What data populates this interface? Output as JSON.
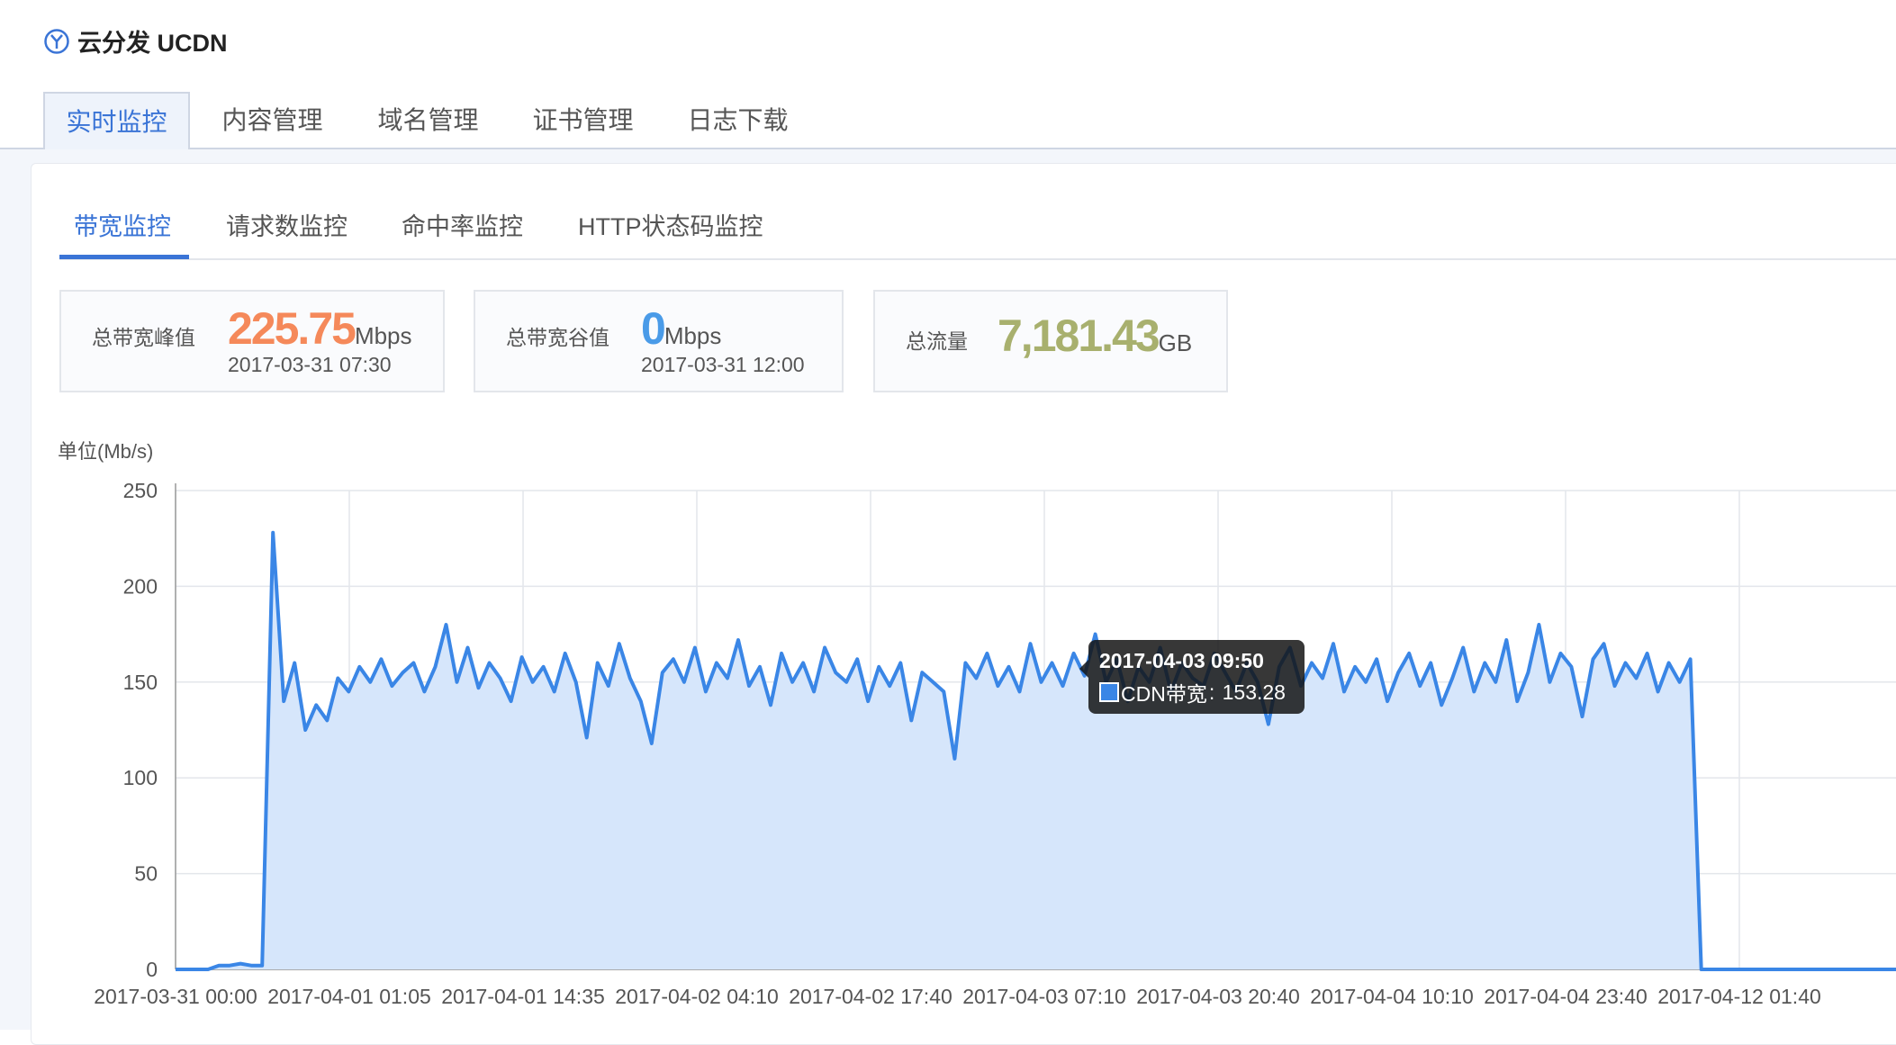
{
  "app": {
    "title": "云分发 UCDN",
    "logo_icon": "ucloud-logo-icon"
  },
  "top_tabs": [
    {
      "label": "实时监控",
      "active": true
    },
    {
      "label": "内容管理"
    },
    {
      "label": "域名管理"
    },
    {
      "label": "证书管理"
    },
    {
      "label": "日志下载"
    }
  ],
  "sub_tabs": [
    {
      "label": "带宽监控",
      "active": true
    },
    {
      "label": "请求数监控"
    },
    {
      "label": "命中率监控"
    },
    {
      "label": "HTTP状态码监控"
    }
  ],
  "stats": {
    "peak": {
      "label": "总带宽峰值",
      "value": "225.75",
      "unit": "Mbps",
      "time": "2017-03-31 07:30",
      "color": "#f5895a"
    },
    "valley": {
      "label": "总带宽谷值",
      "value": "0",
      "unit": "Mbps",
      "time": "2017-03-31 12:00",
      "color": "#4a9be8"
    },
    "total": {
      "label": "总流量",
      "value": "7,181.43",
      "unit": "GB",
      "color": "#a8b06e"
    }
  },
  "tooltip": {
    "time": "2017-04-03 09:50",
    "series": "CDN带宽",
    "value": "153.28"
  },
  "chart_data": {
    "type": "area",
    "ylabel": "单位(Mb/s)",
    "ylim": [
      0,
      250
    ],
    "yticks": [
      0,
      50,
      100,
      150,
      200,
      250
    ],
    "xtick_labels": [
      "2017-03-31 00:00",
      "2017-04-01 01:05",
      "2017-04-01 14:35",
      "2017-04-02 04:10",
      "2017-04-02 17:40",
      "2017-04-03 07:10",
      "2017-04-03 20:40",
      "2017-04-04 10:10",
      "2017-04-04 23:40",
      "2017-04-12 01:40"
    ],
    "grid": true,
    "color": "#3a86e6",
    "fill": "#d6e6fb",
    "series": [
      {
        "name": "CDN带宽",
        "values": [
          0,
          0,
          0,
          0,
          2,
          2,
          3,
          2,
          2,
          228,
          140,
          160,
          125,
          138,
          130,
          152,
          145,
          158,
          150,
          162,
          148,
          155,
          160,
          145,
          158,
          180,
          150,
          168,
          147,
          160,
          152,
          140,
          163,
          150,
          158,
          145,
          165,
          150,
          121,
          160,
          148,
          170,
          152,
          140,
          118,
          155,
          162,
          150,
          168,
          145,
          160,
          152,
          172,
          148,
          158,
          138,
          165,
          150,
          160,
          145,
          168,
          155,
          150,
          162,
          140,
          158,
          148,
          160,
          130,
          155,
          150,
          145,
          110,
          160,
          152,
          165,
          148,
          158,
          145,
          170,
          150,
          160,
          148,
          165,
          153.28,
          175,
          150,
          162,
          140,
          158,
          150,
          168,
          145,
          160,
          152,
          148,
          165,
          155,
          145,
          160,
          150,
          128,
          158,
          168,
          148,
          160,
          152,
          170,
          145,
          158,
          150,
          162,
          140,
          155,
          165,
          148,
          160,
          138,
          152,
          168,
          145,
          160,
          150,
          172,
          140,
          155,
          180,
          150,
          165,
          158,
          132,
          162,
          170,
          148,
          160,
          152,
          165,
          145,
          160,
          150,
          162,
          0,
          0,
          0,
          0,
          0,
          0,
          0,
          0,
          0,
          0,
          0,
          0,
          0,
          0,
          0,
          0,
          0,
          0,
          0
        ]
      }
    ]
  }
}
